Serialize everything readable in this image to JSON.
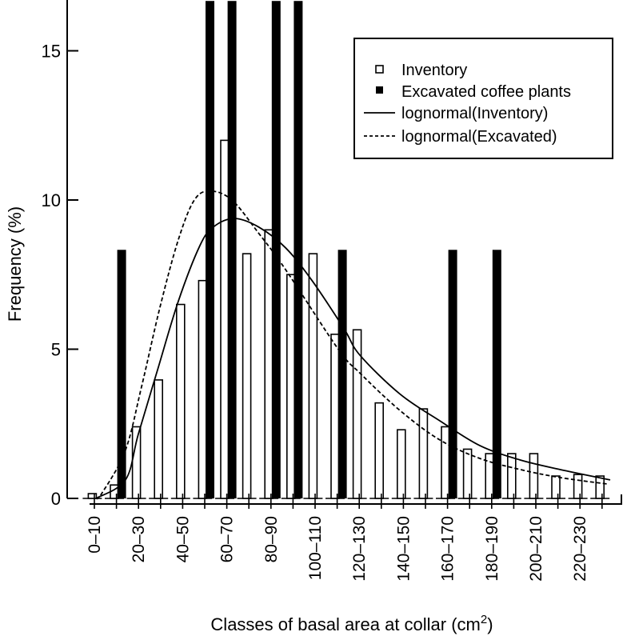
{
  "chart_data": {
    "type": "bar",
    "xlabel": "Classes of basal area at collar (cm",
    "xlabel_sup": "2",
    "xlabel_close": ")",
    "ylabel": "Frequency (%)",
    "ylim": [
      0,
      16.7
    ],
    "yticks": [
      0,
      5,
      10,
      15
    ],
    "grid": false,
    "legend_position": "top-right",
    "categories": [
      "0–10",
      "10–20",
      "20–30",
      "30–40",
      "40–50",
      "50–60",
      "60–70",
      "70–80",
      "80–90",
      "90–100",
      "100–110",
      "110–120",
      "120–130",
      "130–140",
      "140–150",
      "150–160",
      "160–170",
      "170–180",
      "180–190",
      "190–200",
      "200–210",
      "210–220",
      "220–230",
      "230–240"
    ],
    "tick_labels": [
      "0–10",
      "20–30",
      "40–50",
      "60–70",
      "80–90",
      "100–110",
      "120–130",
      "140–150",
      "160–170",
      "180–190",
      "200–210",
      "220–230"
    ],
    "series": [
      {
        "name": "Inventory",
        "kind": "bar",
        "style": "open",
        "values": [
          0.16,
          0.45,
          2.4,
          3.97,
          6.5,
          7.3,
          12.0,
          8.2,
          9.0,
          7.5,
          8.2,
          5.5,
          5.65,
          3.2,
          2.3,
          3.0,
          2.4,
          1.65,
          1.5,
          1.5,
          1.5,
          0.75,
          0.8,
          0.75
        ]
      },
      {
        "name": "Excavated coffee plants",
        "kind": "bar",
        "style": "filled",
        "values": [
          0,
          8.33,
          0,
          0,
          0,
          16.67,
          16.67,
          0,
          16.67,
          16.67,
          0,
          8.33,
          0,
          0,
          0,
          0,
          8.33,
          0,
          8.33,
          0,
          0,
          0,
          0,
          0
        ]
      },
      {
        "name": "lognormal(Inventory)",
        "kind": "line",
        "style": "solid",
        "x": [
          5.7,
          19.1,
          24.9,
          33.6,
          43,
          52.8,
          59,
          68.4,
          79.3,
          91.6,
          103.6,
          118,
          125.3,
          143.4,
          161.5,
          179.6,
          197.8,
          215.9,
          238.7
        ],
        "y": [
          0,
          0.62,
          2.15,
          4.3,
          6.6,
          8.47,
          9.1,
          9.38,
          9.1,
          8.4,
          7.3,
          5.7,
          4.8,
          3.5,
          2.6,
          1.77,
          1.29,
          0.97,
          0.62
        ]
      },
      {
        "name": "lognormal(Excavated)",
        "kind": "line",
        "style": "dashed",
        "x": [
          5.7,
          8.3,
          19,
          26.4,
          34.7,
          43,
          50.3,
          57.5,
          67.3,
          79.3,
          91.6,
          115.5,
          125.3,
          143.4,
          161.5,
          179.6,
          197.8,
          215.9,
          237.6
        ],
        "y": [
          0,
          0.16,
          1.6,
          3.75,
          6.4,
          8.66,
          10.0,
          10.3,
          10.0,
          8.9,
          7.67,
          5.0,
          4.2,
          2.95,
          1.96,
          1.34,
          0.97,
          0.7,
          0.48
        ]
      }
    ]
  }
}
